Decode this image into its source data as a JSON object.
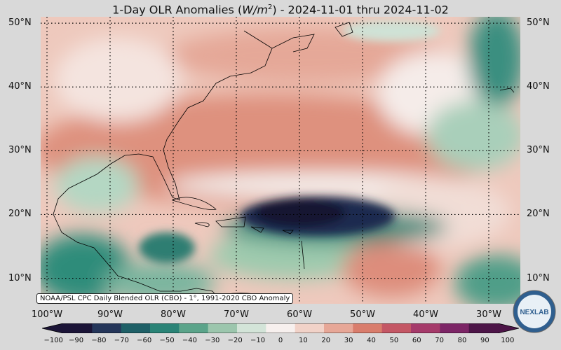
{
  "title": {
    "prefix": "1-Day OLR Anomalies (",
    "unit_base": "W/m",
    "unit_exp": "2",
    "suffix": ") - 2024-11-01 thru 2024-11-02"
  },
  "caption": "NOAA/PSL CPC Daily Blended OLR (CBO) - 1°, 1991-2020 CBO Anomaly",
  "logo_text": "NEXLAB",
  "map": {
    "lon_range": [
      -101,
      -25
    ],
    "lat_range": [
      6,
      51
    ],
    "lat_labels": [
      "50°N",
      "40°N",
      "30°N",
      "20°N",
      "10°N"
    ],
    "lat_values": [
      50,
      40,
      30,
      20,
      10
    ],
    "lon_labels": [
      "100°W",
      "90°W",
      "80°W",
      "70°W",
      "60°W",
      "50°W",
      "40°W",
      "30°W"
    ],
    "lon_values": [
      -100,
      -90,
      -80,
      -70,
      -60,
      -50,
      -40,
      -30
    ],
    "grid": true
  },
  "colorbar": {
    "ticks": [
      "−100",
      "−90",
      "−80",
      "−70",
      "−60",
      "−50",
      "−40",
      "−30",
      "−20",
      "−10",
      "0",
      "10",
      "20",
      "30",
      "40",
      "50",
      "60",
      "70",
      "80",
      "90",
      "100"
    ],
    "range": [
      -105,
      105
    ],
    "colors": [
      "#1b1437",
      "#25365a",
      "#1f6067",
      "#2a8376",
      "#5ba48a",
      "#9cc6ad",
      "#d3e4d8",
      "#f7f0ee",
      "#f1d2c8",
      "#e7a797",
      "#d97d6c",
      "#c45765",
      "#a53a6a",
      "#7c2566",
      "#4d1548"
    ]
  }
}
